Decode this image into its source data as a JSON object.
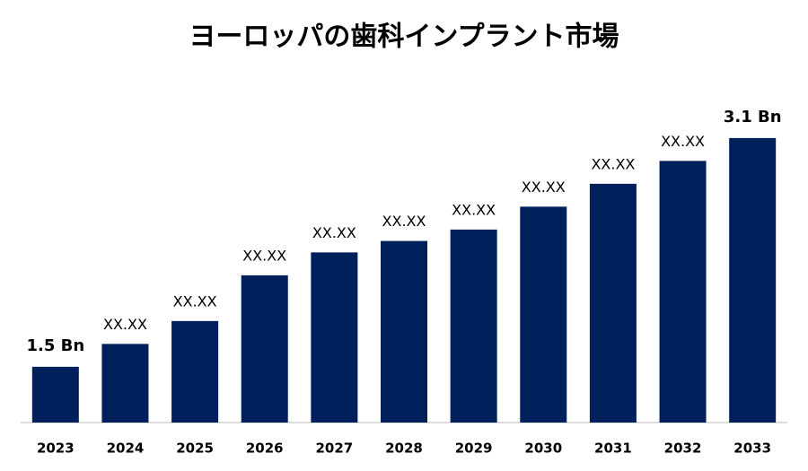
{
  "chart_data": {
    "type": "bar",
    "title": "ヨーロッパの歯科インプラント市場",
    "categories": [
      "2023",
      "2024",
      "2025",
      "2026",
      "2027",
      "2028",
      "2029",
      "2030",
      "2031",
      "2032",
      "2033"
    ],
    "values": [
      1.5,
      1.66,
      1.82,
      2.14,
      2.3,
      2.38,
      2.46,
      2.62,
      2.78,
      2.94,
      3.1
    ],
    "value_labels": [
      "1.5 Bn",
      "XX.XX",
      "XX.XX",
      "XX.XX",
      "XX.XX",
      "XX.XX",
      "XX.XX",
      "XX.XX",
      "XX.XX",
      "XX.XX",
      "3.1 Bn"
    ],
    "color": "#00205b",
    "ylim": [
      1.11,
      3.3
    ]
  }
}
